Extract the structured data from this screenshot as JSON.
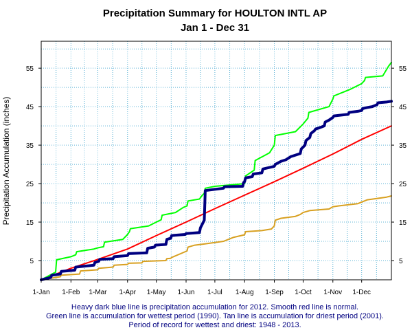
{
  "chart_data": {
    "type": "line",
    "title": "Precipitation Summary for HOULTON INTL AP",
    "subtitle": "Jan 1 - Dec 31",
    "ylabel": "Precipitation Accumulation (inches)",
    "xlabel": "",
    "x_tick_labels": [
      "1-Jan",
      "1-Feb",
      "1-Mar",
      "1-Apr",
      "1-May",
      "1-Jun",
      "1-Jul",
      "1-Aug",
      "1-Sep",
      "1-Oct",
      "1-Nov",
      "1-Dec"
    ],
    "x_tick_days": [
      0,
      31,
      59,
      90,
      120,
      151,
      181,
      212,
      243,
      273,
      304,
      334
    ],
    "xlim": [
      0,
      365
    ],
    "y_ticks": [
      5,
      15,
      25,
      35,
      45,
      55
    ],
    "ylim": [
      0,
      62
    ],
    "grid": true,
    "notes": [
      "Heavy dark blue line is precipitation accumulation for 2012. Smooth red line is normal.",
      "Green line is accumulation for wettest period (1990).   Tan line is accumulation for driest period (2001).",
      "Period of record for wettest and driest: 1948 - 2013."
    ],
    "series": [
      {
        "color": "#ff0000",
        "width": 2,
        "x": [
          0,
          31,
          59,
          90,
          120,
          151,
          181,
          212,
          243,
          273,
          304,
          334,
          365
        ],
        "y": [
          0,
          3.0,
          5.3,
          8.0,
          11.5,
          15.0,
          18.5,
          22.0,
          25.5,
          29.0,
          32.7,
          36.5,
          40.0
        ]
      },
      {
        "color": "#00ff00",
        "width": 2,
        "x": [
          0,
          15,
          16,
          31,
          36,
          37,
          55,
          59,
          65,
          66,
          85,
          90,
          92,
          93,
          112,
          120,
          125,
          126,
          140,
          148,
          152,
          153,
          165,
          168,
          170,
          171,
          181,
          212,
          213,
          222,
          223,
          238,
          243,
          244,
          265,
          273,
          278,
          279,
          300,
          304,
          305,
          322,
          334,
          337,
          338,
          356,
          362,
          365
        ],
        "y": [
          0,
          2.0,
          5.2,
          6.0,
          6.5,
          7.3,
          8.0,
          8.3,
          8.6,
          9.8,
          10.5,
          11.8,
          12.5,
          13.3,
          14.0,
          15.0,
          15.6,
          16.8,
          17.5,
          18.8,
          19.2,
          20.5,
          21.0,
          22.0,
          22.5,
          23.8,
          24.3,
          25.0,
          27.0,
          28.5,
          31.0,
          33.0,
          35.0,
          37.5,
          38.5,
          40.5,
          42.0,
          43.5,
          45.0,
          47.0,
          47.8,
          49.5,
          51.0,
          51.8,
          52.6,
          53.0,
          55.5,
          56.5
        ]
      },
      {
        "color": "#d8a020",
        "width": 2,
        "x": [
          0,
          20,
          21,
          40,
          41,
          59,
          60,
          75,
          76,
          90,
          91,
          105,
          106,
          130,
          131,
          135,
          136,
          152,
          153,
          160,
          170,
          190,
          200,
          212,
          213,
          230,
          240,
          243,
          244,
          250,
          265,
          270,
          273,
          280,
          300,
          304,
          310,
          330,
          334,
          340,
          360,
          365
        ],
        "y": [
          0,
          0.8,
          1.2,
          1.5,
          2.3,
          2.6,
          3.0,
          3.3,
          3.8,
          4.0,
          4.3,
          4.4,
          4.8,
          5.0,
          5.5,
          5.6,
          5.8,
          7.5,
          8.5,
          9.0,
          9.3,
          10.0,
          11.0,
          11.7,
          12.5,
          12.8,
          13.2,
          14.0,
          15.5,
          16.0,
          16.5,
          17.0,
          17.5,
          18.0,
          18.4,
          19.0,
          19.2,
          19.8,
          20.2,
          20.8,
          21.5,
          21.8
        ]
      },
      {
        "color": "#000080",
        "width": 4,
        "x": [
          0,
          10,
          11,
          20,
          21,
          35,
          36,
          55,
          56,
          60,
          61,
          75,
          76,
          90,
          91,
          110,
          111,
          118,
          119,
          130,
          131,
          135,
          136,
          150,
          151,
          165,
          166,
          168,
          170,
          171,
          190,
          191,
          210,
          211,
          212,
          213,
          220,
          221,
          230,
          231,
          238,
          243,
          244,
          250,
          255,
          260,
          270,
          271,
          275,
          276,
          280,
          281,
          285,
          286,
          290,
          295,
          296,
          300,
          304,
          305,
          320,
          321,
          330,
          334,
          335,
          340,
          345,
          350,
          351,
          360,
          365
        ],
        "y": [
          0,
          0.6,
          1.2,
          1.5,
          2.2,
          2.5,
          3.3,
          3.8,
          4.5,
          4.8,
          5.3,
          5.5,
          6.0,
          6.3,
          6.8,
          7.0,
          8.2,
          8.5,
          9.0,
          9.2,
          10.5,
          10.8,
          11.5,
          11.8,
          12.0,
          12.3,
          13.5,
          14.5,
          15.5,
          23.2,
          23.8,
          24.2,
          24.3,
          25.3,
          25.5,
          26.5,
          26.8,
          27.5,
          27.8,
          28.8,
          29.2,
          29.5,
          30.0,
          30.8,
          31.2,
          32.0,
          32.8,
          34.0,
          35.0,
          36.2,
          37.0,
          38.0,
          38.8,
          39.2,
          39.5,
          40.0,
          41.0,
          41.5,
          42.2,
          42.6,
          43.0,
          43.5,
          43.8,
          44.0,
          44.5,
          44.8,
          45.0,
          45.5,
          46.0,
          46.2,
          46.4
        ]
      }
    ]
  }
}
